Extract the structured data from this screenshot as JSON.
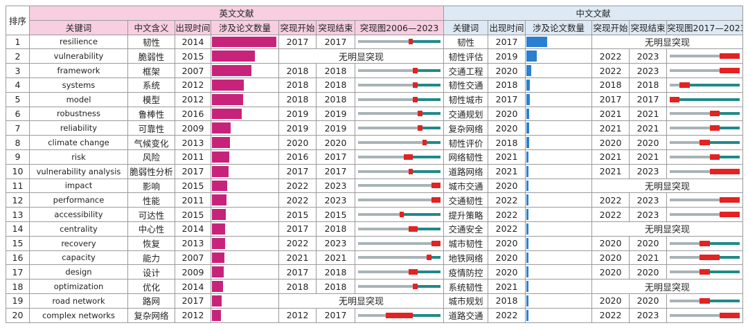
{
  "header": {
    "rank": "排序",
    "english_group": "英文文献",
    "chinese_group": "中文文献",
    "en_cols": [
      "关键词",
      "中文含义",
      "出现时间",
      "涉及论文数量",
      "突现开始",
      "突现结束",
      "突现图2006—2023"
    ],
    "cn_cols": [
      "关键词",
      "出现时间",
      "涉及论文数量",
      "突现开始",
      "突现结束",
      "突现图2017—2023"
    ]
  },
  "no_burst_text": "无明显突现",
  "colors": {
    "en_bar": "#c8237a",
    "cn_bar": "#2b7fd0",
    "burst": "#e32222",
    "active": "#1f8a88",
    "inactive": "#a9b3b5"
  },
  "en_range": [
    2006,
    2023
  ],
  "cn_range": [
    2017,
    2023
  ],
  "rows": [
    {
      "rank": "1",
      "en": {
        "kw": "resilience",
        "cn": "韧性",
        "year": "2014",
        "papers": 1.0,
        "start": "2017",
        "end": "2017"
      },
      "cn": {
        "kw": "韧性",
        "year": "2017",
        "papers": 1.0,
        "start": "",
        "end": ""
      }
    },
    {
      "rank": "2",
      "en": {
        "kw": "vulnerability",
        "cn": "脆弱性",
        "year": "2015",
        "papers": 0.67,
        "start": "",
        "end": ""
      },
      "cn": {
        "kw": "韧性评估",
        "year": "2019",
        "papers": 0.5,
        "start": "2022",
        "end": "2023"
      }
    },
    {
      "rank": "3",
      "en": {
        "kw": "framework",
        "cn": "框架",
        "year": "2007",
        "papers": 0.62,
        "start": "2018",
        "end": "2018"
      },
      "cn": {
        "kw": "交通工程",
        "year": "2020",
        "papers": 0.24,
        "start": "2022",
        "end": "2023"
      }
    },
    {
      "rank": "4",
      "en": {
        "kw": "systems",
        "cn": "系统",
        "year": "2012",
        "papers": 0.5,
        "start": "2018",
        "end": "2018"
      },
      "cn": {
        "kw": "韧性交通",
        "year": "2018",
        "papers": 0.18,
        "start": "2018",
        "end": "2018"
      }
    },
    {
      "rank": "5",
      "en": {
        "kw": "model",
        "cn": "模型",
        "year": "2012",
        "papers": 0.49,
        "start": "2018",
        "end": "2018"
      },
      "cn": {
        "kw": "韧性城市",
        "year": "2017",
        "papers": 0.15,
        "start": "2017",
        "end": "2017"
      }
    },
    {
      "rank": "6",
      "en": {
        "kw": "robustness",
        "cn": "鲁棒性",
        "year": "2016",
        "papers": 0.47,
        "start": "2019",
        "end": "2019"
      },
      "cn": {
        "kw": "交通规划",
        "year": "2020",
        "papers": 0.12,
        "start": "2021",
        "end": "2021"
      }
    },
    {
      "rank": "7",
      "en": {
        "kw": "reliability",
        "cn": "可靠性",
        "year": "2009",
        "papers": 0.31,
        "start": "2019",
        "end": "2019"
      },
      "cn": {
        "kw": "复杂网络",
        "year": "2020",
        "papers": 0.12,
        "start": "2021",
        "end": "2021"
      }
    },
    {
      "rank": "8",
      "en": {
        "kw": "climate change",
        "cn": "气候变化",
        "year": "2013",
        "papers": 0.29,
        "start": "2020",
        "end": "2020"
      },
      "cn": {
        "kw": "韧性评价",
        "year": "2018",
        "papers": 0.12,
        "start": "2020",
        "end": "2020"
      }
    },
    {
      "rank": "9",
      "en": {
        "kw": "risk",
        "cn": "风险",
        "year": "2011",
        "papers": 0.28,
        "start": "2016",
        "end": "2017"
      },
      "cn": {
        "kw": "网络韧性",
        "year": "2021",
        "papers": 0.11,
        "start": "2021",
        "end": "2021"
      }
    },
    {
      "rank": "10",
      "en": {
        "kw": "vulnerability analysis",
        "cn": "脆弱性分析",
        "year": "2017",
        "papers": 0.27,
        "start": "2017",
        "end": "2017"
      },
      "cn": {
        "kw": "道路网络",
        "year": "2021",
        "papers": 0.1,
        "start": "2021",
        "end": "2023"
      }
    },
    {
      "rank": "11",
      "en": {
        "kw": "impact",
        "cn": "影响",
        "year": "2015",
        "papers": 0.25,
        "start": "2022",
        "end": "2023"
      },
      "cn": {
        "kw": "城市交通",
        "year": "2020",
        "papers": 0.09,
        "start": "",
        "end": ""
      }
    },
    {
      "rank": "12",
      "en": {
        "kw": "performance",
        "cn": "性能",
        "year": "2011",
        "papers": 0.24,
        "start": "2022",
        "end": "2023"
      },
      "cn": {
        "kw": "交通韧性",
        "year": "2022",
        "papers": 0.09,
        "start": "2022",
        "end": "2023"
      }
    },
    {
      "rank": "13",
      "en": {
        "kw": "accessibility",
        "cn": "可达性",
        "year": "2015",
        "papers": 0.23,
        "start": "2015",
        "end": "2015"
      },
      "cn": {
        "kw": "提升策略",
        "year": "2022",
        "papers": 0.09,
        "start": "2022",
        "end": "2023"
      }
    },
    {
      "rank": "14",
      "en": {
        "kw": "centrality",
        "cn": "中心性",
        "year": "2014",
        "papers": 0.22,
        "start": "2017",
        "end": "2018"
      },
      "cn": {
        "kw": "交通安全",
        "year": "2022",
        "papers": 0.09,
        "start": "",
        "end": ""
      }
    },
    {
      "rank": "15",
      "en": {
        "kw": "recovery",
        "cn": "恢复",
        "year": "2013",
        "papers": 0.22,
        "start": "2022",
        "end": "2023"
      },
      "cn": {
        "kw": "城市韧性",
        "year": "2020",
        "papers": 0.08,
        "start": "2020",
        "end": "2020"
      }
    },
    {
      "rank": "16",
      "en": {
        "kw": "capacity",
        "cn": "能力",
        "year": "2007",
        "papers": 0.21,
        "start": "2021",
        "end": "2021"
      },
      "cn": {
        "kw": "地铁网络",
        "year": "2020",
        "papers": 0.08,
        "start": "2020",
        "end": "2021"
      }
    },
    {
      "rank": "17",
      "en": {
        "kw": "design",
        "cn": "设计",
        "year": "2009",
        "papers": 0.2,
        "start": "2017",
        "end": "2018"
      },
      "cn": {
        "kw": "疫情防控",
        "year": "2020",
        "papers": 0.08,
        "start": "2020",
        "end": "2020"
      }
    },
    {
      "rank": "18",
      "en": {
        "kw": "optimization",
        "cn": "优化",
        "year": "2014",
        "papers": 0.19,
        "start": "2018",
        "end": "2018"
      },
      "cn": {
        "kw": "系统韧性",
        "year": "2021",
        "papers": 0.08,
        "start": "",
        "end": ""
      }
    },
    {
      "rank": "19",
      "en": {
        "kw": "road network",
        "cn": "路网",
        "year": "2017",
        "papers": 0.17,
        "start": "",
        "end": ""
      },
      "cn": {
        "kw": "城市规划",
        "year": "2018",
        "papers": 0.08,
        "start": "2020",
        "end": "2020"
      }
    },
    {
      "rank": "20",
      "en": {
        "kw": "complex networks",
        "cn": "复杂网络",
        "year": "2012",
        "papers": 0.16,
        "start": "2012",
        "end": "2017"
      },
      "cn": {
        "kw": "道路交通",
        "year": "2022",
        "papers": 0.08,
        "start": "2022",
        "end": "2023"
      }
    }
  ]
}
